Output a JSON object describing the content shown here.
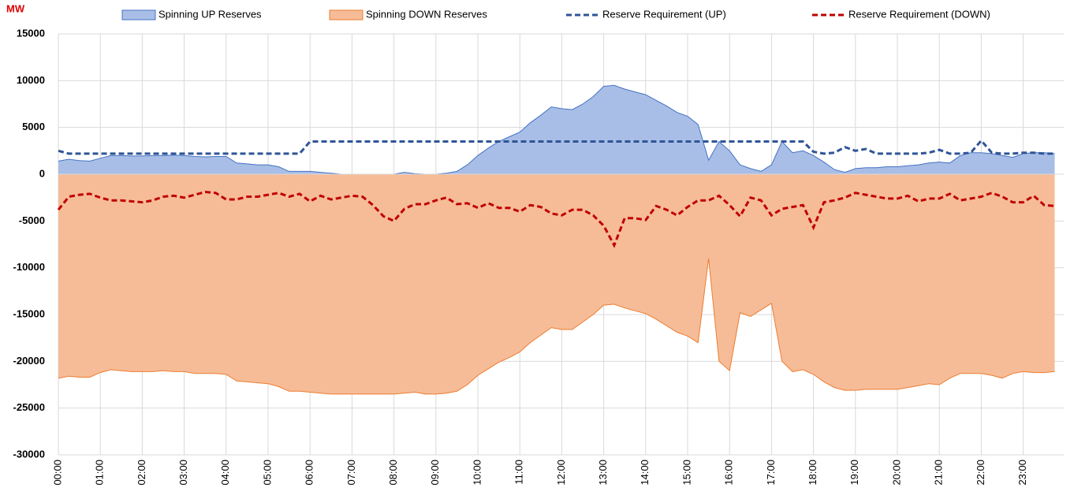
{
  "chart_data": {
    "type": "area",
    "y_label": "MW",
    "categories": [
      "00:00",
      null,
      null,
      null,
      "01:00",
      null,
      null,
      null,
      "02:00",
      null,
      null,
      null,
      "03:00",
      null,
      null,
      null,
      "04:00",
      null,
      null,
      null,
      "05:00",
      null,
      null,
      null,
      "06:00",
      null,
      null,
      null,
      "07:00",
      null,
      null,
      null,
      "08:00",
      null,
      null,
      null,
      "09:00",
      null,
      null,
      null,
      "10:00",
      null,
      null,
      null,
      "11:00",
      null,
      null,
      null,
      "12:00",
      null,
      null,
      null,
      "13:00",
      null,
      null,
      null,
      "14:00",
      null,
      null,
      null,
      "15:00",
      null,
      null,
      null,
      "16:00",
      null,
      null,
      null,
      "17:00",
      null,
      null,
      null,
      "18:00",
      null,
      null,
      null,
      "19:00",
      null,
      null,
      null,
      "20:00",
      null,
      null,
      null,
      "21:00",
      null,
      null,
      null,
      "22:00",
      null,
      null,
      null,
      "23:00",
      null,
      null,
      null
    ],
    "ylim": [
      -30000,
      15000
    ],
    "yticks": [
      -30000,
      -25000,
      -20000,
      -15000,
      -10000,
      -5000,
      0,
      5000,
      10000,
      15000
    ],
    "grid": true,
    "series": [
      {
        "name": "Spinning UP Reserves",
        "style": "area",
        "color": "#4472c4",
        "fill": "#a9bee6",
        "values": [
          1400,
          1600,
          1450,
          1400,
          1700,
          2000,
          2000,
          1950,
          1950,
          2000,
          2000,
          2050,
          2000,
          1900,
          1850,
          1900,
          1900,
          1200,
          1100,
          1000,
          1000,
          800,
          300,
          300,
          300,
          200,
          100,
          0,
          0,
          0,
          0,
          0,
          0,
          200,
          50,
          0,
          0,
          100,
          300,
          1000,
          2000,
          2800,
          3500,
          4000,
          4500,
          5500,
          6300,
          7200,
          7000,
          6900,
          7500,
          8300,
          9400,
          9500,
          9100,
          8800,
          8500,
          7900,
          7300,
          6600,
          6200,
          5300,
          1500,
          3500,
          2500,
          1000,
          600,
          300,
          1000,
          3500,
          2300,
          2500,
          2000,
          1300,
          500,
          200,
          600,
          700,
          700,
          800,
          800,
          900,
          1000,
          1200,
          1300,
          1200,
          2000,
          2300,
          2300,
          2200,
          2000,
          1800,
          2200,
          2300,
          2300,
          2200
        ]
      },
      {
        "name": "Spinning DOWN Reserves",
        "style": "area",
        "color": "#ed7d31",
        "fill": "#f6bc97",
        "values": [
          -21800,
          -21600,
          -21700,
          -21700,
          -21200,
          -20900,
          -21000,
          -21100,
          -21100,
          -21100,
          -21000,
          -21100,
          -21100,
          -21300,
          -21300,
          -21300,
          -21400,
          -22100,
          -22200,
          -22300,
          -22400,
          -22700,
          -23200,
          -23200,
          -23300,
          -23400,
          -23500,
          -23500,
          -23500,
          -23500,
          -23500,
          -23500,
          -23500,
          -23400,
          -23300,
          -23500,
          -23500,
          -23400,
          -23200,
          -22500,
          -21500,
          -20800,
          -20100,
          -19600,
          -19000,
          -18000,
          -17200,
          -16400,
          -16600,
          -16600,
          -15800,
          -15000,
          -14000,
          -13900,
          -14300,
          -14600,
          -14900,
          -15500,
          -16200,
          -16900,
          -17300,
          -18000,
          -9000,
          -20000,
          -21000,
          -14800,
          -15200,
          -14500,
          -13800,
          -20000,
          -21100,
          -20900,
          -21400,
          -22200,
          -22800,
          -23100,
          -23100,
          -23000,
          -23000,
          -23000,
          -23000,
          -22800,
          -22600,
          -22400,
          -22500,
          -21800,
          -21300,
          -21300,
          -21300,
          -21500,
          -21800,
          -21300,
          -21100,
          -21200,
          -21200,
          -21100
        ]
      },
      {
        "name": "Reserve Requirement (UP)",
        "style": "dashed",
        "color": "#2f5597",
        "values": [
          2500,
          2200,
          2200,
          2200,
          2200,
          2200,
          2200,
          2200,
          2200,
          2200,
          2200,
          2200,
          2200,
          2200,
          2200,
          2200,
          2200,
          2200,
          2200,
          2200,
          2200,
          2200,
          2200,
          2200,
          3500,
          3500,
          3500,
          3500,
          3500,
          3500,
          3500,
          3500,
          3500,
          3500,
          3500,
          3500,
          3500,
          3500,
          3500,
          3500,
          3500,
          3500,
          3500,
          3500,
          3500,
          3500,
          3500,
          3500,
          3500,
          3500,
          3500,
          3500,
          3500,
          3500,
          3500,
          3500,
          3500,
          3500,
          3500,
          3500,
          3500,
          3500,
          3500,
          3500,
          3500,
          3500,
          3500,
          3500,
          3500,
          3500,
          3500,
          3500,
          2400,
          2200,
          2300,
          2900,
          2500,
          2700,
          2200,
          2200,
          2200,
          2200,
          2200,
          2300,
          2600,
          2200,
          2200,
          2300,
          3600,
          2300,
          2200,
          2200,
          2300,
          2300,
          2200,
          2200
        ]
      },
      {
        "name": "Reserve Requirement (DOWN)",
        "style": "dashed",
        "color": "#c00000",
        "values": [
          -3800,
          -2400,
          -2200,
          -2100,
          -2500,
          -2800,
          -2800,
          -2900,
          -3000,
          -2800,
          -2400,
          -2300,
          -2500,
          -2200,
          -1900,
          -2000,
          -2700,
          -2700,
          -2400,
          -2400,
          -2200,
          -2000,
          -2400,
          -2100,
          -2900,
          -2300,
          -2700,
          -2500,
          -2300,
          -2400,
          -3300,
          -4500,
          -5000,
          -3700,
          -3200,
          -3200,
          -2800,
          -2500,
          -3200,
          -3100,
          -3600,
          -3100,
          -3600,
          -3600,
          -4000,
          -3300,
          -3500,
          -4200,
          -4400,
          -3800,
          -3800,
          -4400,
          -5500,
          -7600,
          -4700,
          -4700,
          -4900,
          -3400,
          -3800,
          -4400,
          -3500,
          -2800,
          -2800,
          -2300,
          -3300,
          -4500,
          -2500,
          -2800,
          -4400,
          -3700,
          -3500,
          -3300,
          -5700,
          -3000,
          -2800,
          -2500,
          -2000,
          -2200,
          -2400,
          -2600,
          -2600,
          -2300,
          -2900,
          -2600,
          -2600,
          -2100,
          -2800,
          -2600,
          -2400,
          -2000,
          -2400,
          -3000,
          -3000,
          -2300,
          -3300,
          -3400
        ]
      }
    ]
  }
}
